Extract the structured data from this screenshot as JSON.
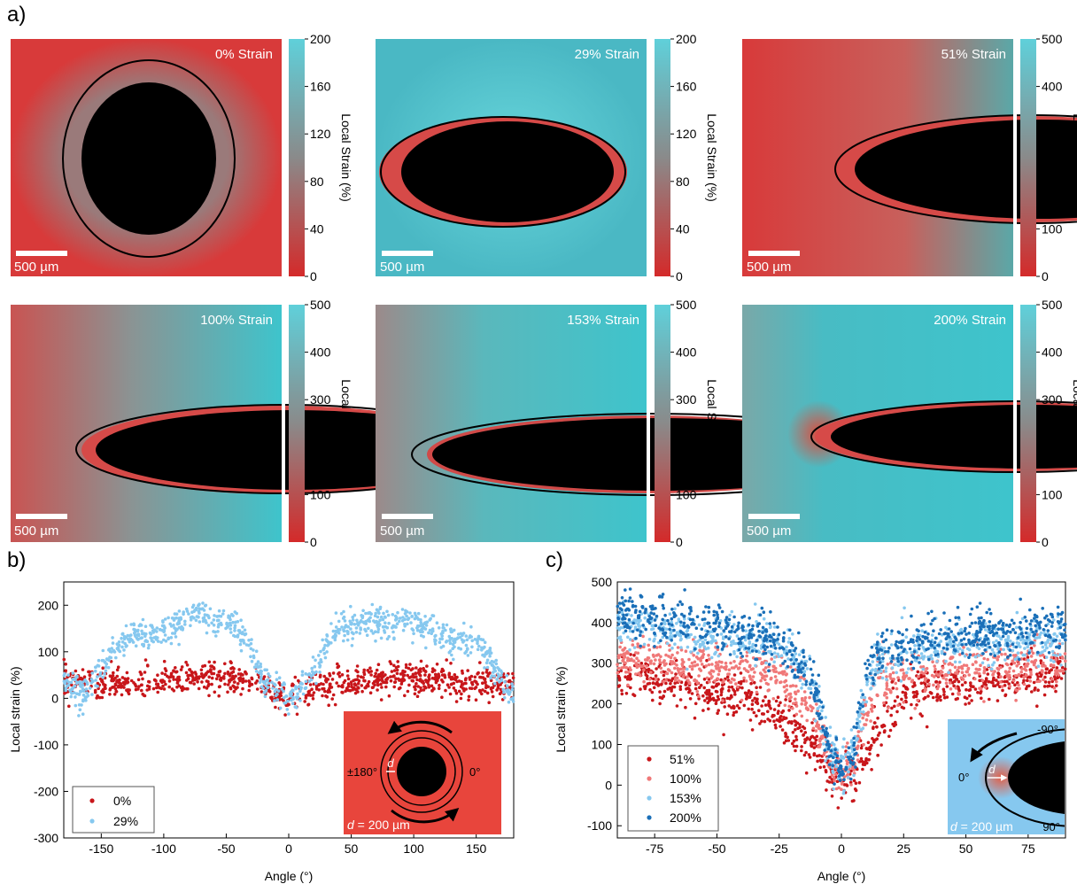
{
  "panel_labels": {
    "a": "a)",
    "b": "b)",
    "c": "c)"
  },
  "colors": {
    "red": "#d42a2a",
    "dark_red": "#c8161a",
    "light_red": "#f07878",
    "light_blue": "#86c8ef",
    "dark_blue": "#1a6fb8",
    "cyan": "#3cc4cc",
    "black": "#000000"
  },
  "panel_a": {
    "colorbar_title": "Local Strain (%)",
    "scale_bar": "500 µm",
    "maps": [
      {
        "label": "0% Strain",
        "ticks": [
          "200",
          "160",
          "120",
          "80",
          "40",
          "0"
        ]
      },
      {
        "label": "29% Strain",
        "ticks": [
          "200",
          "160",
          "120",
          "80",
          "40",
          "0"
        ]
      },
      {
        "label": "51% Strain",
        "ticks": [
          "500",
          "400",
          "300",
          "200",
          "100",
          "0"
        ]
      },
      {
        "label": "100% Strain",
        "ticks": [
          "500",
          "400",
          "300",
          "200",
          "100",
          "0"
        ]
      },
      {
        "label": "153% Strain",
        "ticks": [
          "500",
          "400",
          "300",
          "200",
          "100",
          "0"
        ]
      },
      {
        "label": "200% Strain",
        "ticks": [
          "500",
          "400",
          "300",
          "200",
          "100",
          "0"
        ]
      }
    ]
  },
  "chart_data": [
    {
      "type": "scatter",
      "xlabel": "Angle (°)",
      "ylabel": "Local strain (%)",
      "xlim": [
        -180,
        180
      ],
      "ylim": [
        -300,
        250
      ],
      "xticks": [
        "-150",
        "-100",
        "-50",
        "0",
        "50",
        "100",
        "150"
      ],
      "yticks": [
        "200",
        "100",
        "0",
        "-100",
        "-200",
        "-300"
      ],
      "legend_position": "bottom-left",
      "series": [
        {
          "name": "0%",
          "color": "#c8161a",
          "x": [
            -180,
            -150,
            -120,
            -90,
            -60,
            -30,
            0,
            30,
            60,
            90,
            120,
            150,
            180
          ],
          "y": [
            40,
            30,
            30,
            40,
            45,
            35,
            0,
            30,
            40,
            45,
            40,
            30,
            35
          ]
        },
        {
          "name": "29%",
          "color": "#86c8ef",
          "x": [
            -180,
            -165,
            -150,
            -135,
            -120,
            -105,
            -90,
            -75,
            -60,
            -45,
            -30,
            -20,
            -10,
            0,
            10,
            20,
            35,
            50,
            65,
            80,
            95,
            110,
            125,
            140,
            155,
            170,
            180
          ],
          "y": [
            40,
            10,
            60,
            120,
            140,
            140,
            150,
            185,
            165,
            160,
            100,
            40,
            20,
            0,
            20,
            60,
            135,
            160,
            165,
            165,
            160,
            150,
            130,
            120,
            110,
            40,
            -10
          ]
        }
      ],
      "inset": {
        "label_left": "±180°",
        "label_right": "0°",
        "label_d": "d",
        "caption_var": "d",
        "caption_value": " = 200 µm"
      }
    },
    {
      "type": "scatter",
      "xlabel": "Angle (°)",
      "ylabel": "Local strain (%)",
      "xlim": [
        -90,
        90
      ],
      "ylim": [
        -130,
        500
      ],
      "xticks": [
        "-75",
        "-50",
        "-25",
        "0",
        "25",
        "50",
        "75"
      ],
      "yticks": [
        "500",
        "400",
        "300",
        "200",
        "100",
        "0",
        "-100"
      ],
      "legend_position": "bottom-left",
      "series": [
        {
          "name": "51%",
          "color": "#c8161a",
          "x": [
            -90,
            -75,
            -60,
            -45,
            -30,
            -20,
            -10,
            -5,
            0,
            5,
            10,
            15,
            25,
            40,
            55,
            70,
            90
          ],
          "y": [
            280,
            260,
            240,
            215,
            195,
            150,
            90,
            30,
            10,
            20,
            60,
            130,
            230,
            240,
            250,
            260,
            280
          ]
        },
        {
          "name": "100%",
          "color": "#f07878",
          "x": [
            -90,
            -75,
            -60,
            -45,
            -30,
            -20,
            -10,
            -5,
            0,
            5,
            10,
            15,
            25,
            40,
            55,
            70,
            90
          ],
          "y": [
            310,
            300,
            290,
            285,
            280,
            240,
            160,
            70,
            20,
            60,
            180,
            250,
            270,
            280,
            290,
            295,
            300
          ]
        },
        {
          "name": "153%",
          "color": "#86c8ef",
          "x": [
            -90,
            -75,
            -60,
            -45,
            -30,
            -20,
            -10,
            -5,
            0,
            5,
            10,
            15,
            25,
            40,
            55,
            70,
            90
          ],
          "y": [
            400,
            390,
            370,
            360,
            350,
            320,
            220,
            90,
            30,
            90,
            240,
            310,
            330,
            340,
            350,
            355,
            360
          ]
        },
        {
          "name": "200%",
          "color": "#1a6fb8",
          "x": [
            -90,
            -75,
            -60,
            -45,
            -30,
            -20,
            -10,
            -5,
            0,
            5,
            10,
            15,
            25,
            40,
            55,
            70,
            90
          ],
          "y": [
            420,
            410,
            400,
            390,
            360,
            330,
            230,
            90,
            40,
            100,
            260,
            320,
            340,
            360,
            370,
            380,
            390
          ]
        }
      ],
      "inset": {
        "label_top": "-90°",
        "label_bottom": "90°",
        "label_left": "0°",
        "label_d": "d",
        "caption_var": "d",
        "caption_value": " = 200 µm"
      }
    }
  ]
}
